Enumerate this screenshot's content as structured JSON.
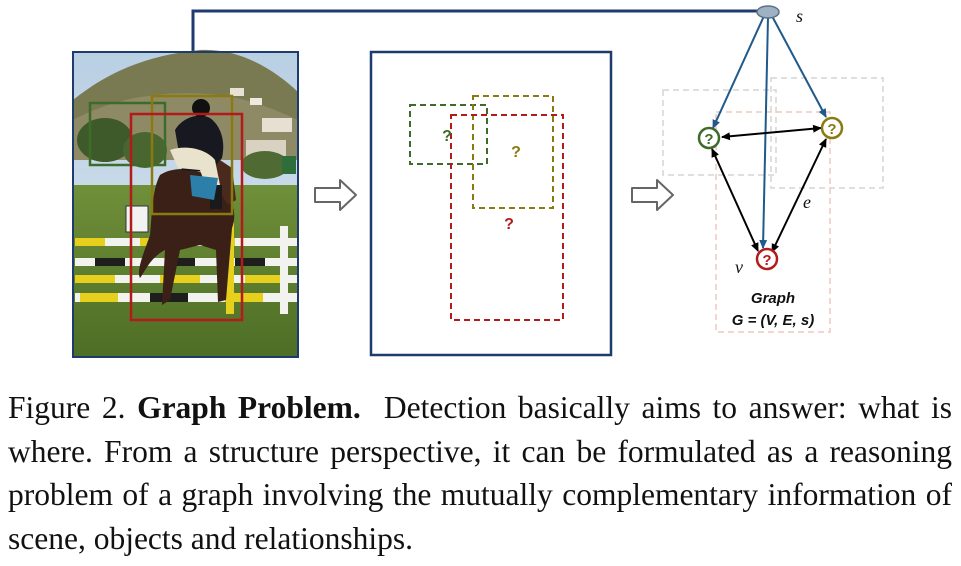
{
  "colors": {
    "frame_blue": "#1f3b6e",
    "green_box": "#3d6b2a",
    "olive_box": "#8a7a10",
    "red_box": "#b31b1b",
    "node_blue": "#1f5a8a",
    "faint_box": "#d9d3cf",
    "faint_pink": "#f0c9c0"
  },
  "diagram": {
    "node_s_label": "s",
    "node_v_label": "v",
    "edge_e_label": "e",
    "unknown_mark": "?",
    "graph_title": "Graph",
    "graph_formula": "G = (V, E, s)"
  },
  "caption": {
    "label": "Figure 2.",
    "title": "Graph Problem.",
    "body": "Detection basically aims to answer: what is where. From a structure perspective, it can be formulated as a reasoning problem of a graph involving the mutually complementary information of scene, objects and relationships."
  }
}
